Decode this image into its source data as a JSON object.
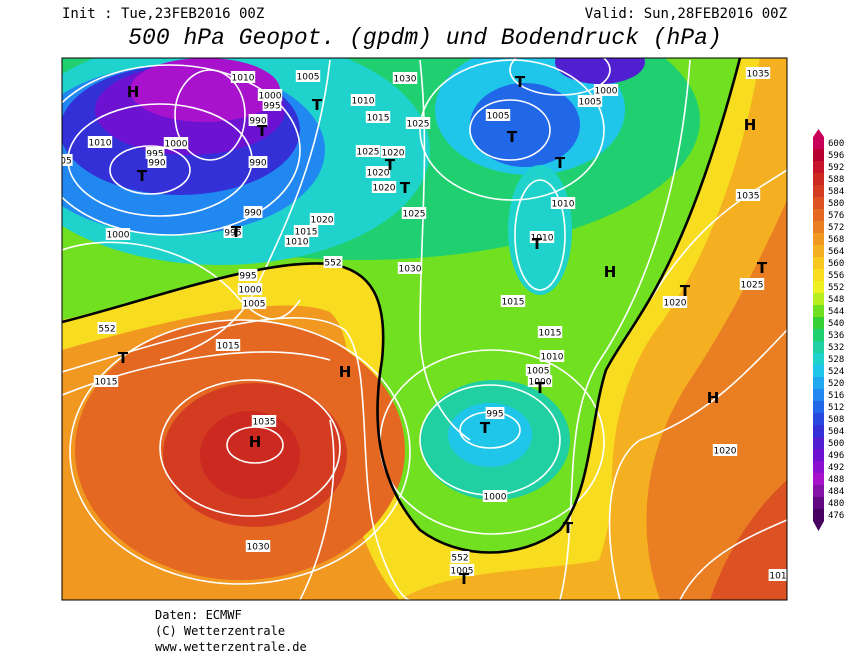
{
  "header": {
    "init": "Init : Tue,23FEB2016 00Z",
    "valid": "Valid: Sun,28FEB2016 00Z",
    "title": "500 hPa Geopot. (gpdm) und Bodendruck (hPa)"
  },
  "map": {
    "pressure_labels": [
      "1010",
      "1005",
      "1030",
      "1000",
      "995",
      "1010",
      "1015",
      "1025",
      "1005",
      "1000",
      "1005",
      "1035",
      "1010",
      "1000",
      "995",
      "990",
      "990",
      "990",
      "1025",
      "1020",
      "1020",
      "1020",
      "1010",
      "990",
      "995",
      "1020",
      "1015",
      "1010",
      "1025",
      "1010",
      "1035",
      "1000",
      "995",
      "1000",
      "1005",
      "552",
      "1030",
      "1020",
      "1025",
      "1015",
      "552",
      "1015",
      "1015",
      "1010",
      "1005",
      "1000",
      "1015",
      "995",
      "1035",
      "1020",
      "1000",
      "1030",
      "552",
      "1005",
      "101",
      "05"
    ],
    "centers": [
      "H",
      "T",
      "T",
      "T",
      "T",
      "H",
      "T",
      "T",
      "T",
      "T",
      "T",
      "T",
      "H",
      "T",
      "T",
      "T",
      "H",
      "T",
      "H",
      "T",
      "H",
      "T",
      "T"
    ]
  },
  "colorbar": {
    "values": [
      600,
      596,
      592,
      588,
      584,
      580,
      576,
      572,
      568,
      564,
      560,
      556,
      552,
      548,
      544,
      540,
      536,
      532,
      528,
      524,
      520,
      516,
      512,
      508,
      504,
      500,
      496,
      492,
      488,
      484,
      480,
      476
    ],
    "colors": [
      "#c8005a",
      "#b80030",
      "#c8142a",
      "#cc2a20",
      "#d43c22",
      "#dc5222",
      "#e46822",
      "#ea7e22",
      "#f09820",
      "#f4b020",
      "#f8c820",
      "#f8dc20",
      "#eef020",
      "#b6ee20",
      "#70e020",
      "#34d034",
      "#20d070",
      "#20d0a2",
      "#20d2cc",
      "#20c6ea",
      "#20a8f0",
      "#2088f0",
      "#2068e8",
      "#2848e0",
      "#3430d8",
      "#5020d0",
      "#6c12d0",
      "#8c10d0",
      "#a812cc",
      "#8412a8",
      "#620882",
      "#480060"
    ]
  },
  "footer": {
    "lines": [
      "Daten: ECMWF",
      "(C) Wetterzentrale",
      "www.wetterzentrale.de"
    ]
  }
}
